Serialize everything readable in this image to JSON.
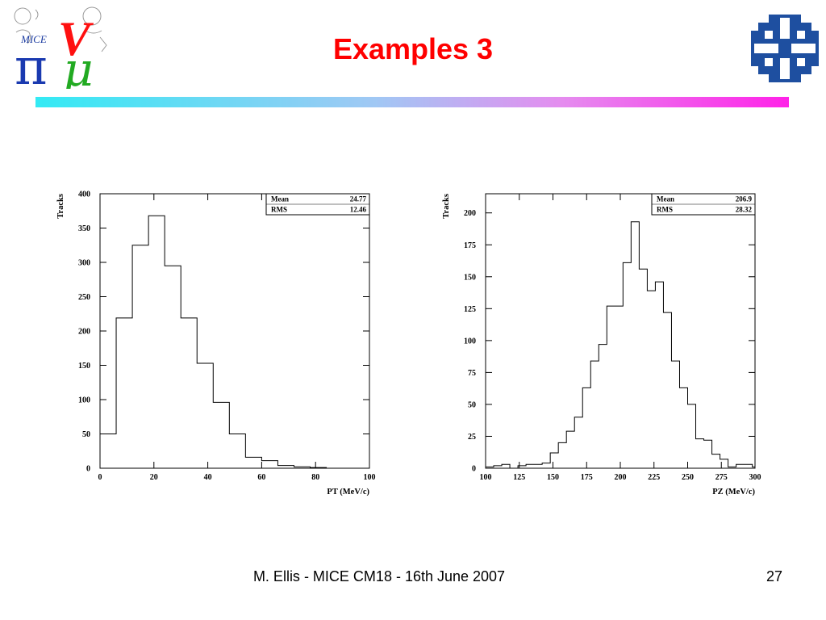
{
  "slide": {
    "title": "Examples 3",
    "footer": "M. Ellis - MICE CM18 - 16th June 2007",
    "page_number": "27",
    "logo_left_text": "MICE",
    "colors": {
      "title": "#ff0000",
      "fnal_logo": "#1e4fa0",
      "bar_start": "#33eaf4",
      "bar_end": "#ff22e8"
    }
  },
  "chart_data": [
    {
      "type": "histogram",
      "ylabel": "Tracks",
      "xlabel": "PT (MeV/c)",
      "xlim": [
        0,
        100
      ],
      "ylim": [
        0,
        400
      ],
      "xticks": [
        0,
        20,
        40,
        60,
        80,
        100
      ],
      "yticks": [
        0,
        50,
        100,
        150,
        200,
        250,
        300,
        350,
        400
      ],
      "bin_edges": [
        0,
        6,
        12,
        18,
        24,
        30,
        36,
        42,
        48,
        54,
        60,
        66,
        72,
        78,
        84,
        90,
        96,
        100
      ],
      "values": [
        50,
        219,
        325,
        368,
        295,
        219,
        153,
        96,
        50,
        16,
        11,
        4,
        2,
        1,
        0,
        0,
        0
      ],
      "stats": [
        {
          "label": "Mean",
          "value": "24.77"
        },
        {
          "label": "RMS",
          "value": "12.46"
        }
      ],
      "grid": false,
      "stats_box": "top-right"
    },
    {
      "type": "histogram",
      "ylabel": "Tracks",
      "xlabel": "PZ (MeV/c)",
      "xlim": [
        100,
        300
      ],
      "ylim": [
        0,
        215
      ],
      "xticks": [
        100,
        125,
        150,
        175,
        200,
        225,
        250,
        275,
        300
      ],
      "yticks": [
        0,
        25,
        50,
        75,
        100,
        125,
        150,
        175,
        200
      ],
      "bin_edges": [
        100,
        106,
        112,
        118,
        124,
        130,
        136,
        142,
        148,
        154,
        160,
        166,
        172,
        178,
        184,
        190,
        196,
        202,
        208,
        214,
        220,
        226,
        232,
        238,
        244,
        250,
        256,
        262,
        268,
        274,
        280,
        286,
        292,
        298,
        300
      ],
      "values": [
        1,
        2,
        3,
        0,
        2,
        3,
        3,
        4,
        12,
        20,
        29,
        40,
        63,
        84,
        97,
        127,
        127,
        161,
        193,
        156,
        139,
        146,
        122,
        84,
        63,
        50,
        23,
        22,
        11,
        7,
        1,
        3,
        3,
        1
      ],
      "stats": [
        {
          "label": "Mean",
          "value": "206.9"
        },
        {
          "label": "RMS",
          "value": "28.32"
        }
      ],
      "grid": false,
      "stats_box": "top-right"
    }
  ]
}
